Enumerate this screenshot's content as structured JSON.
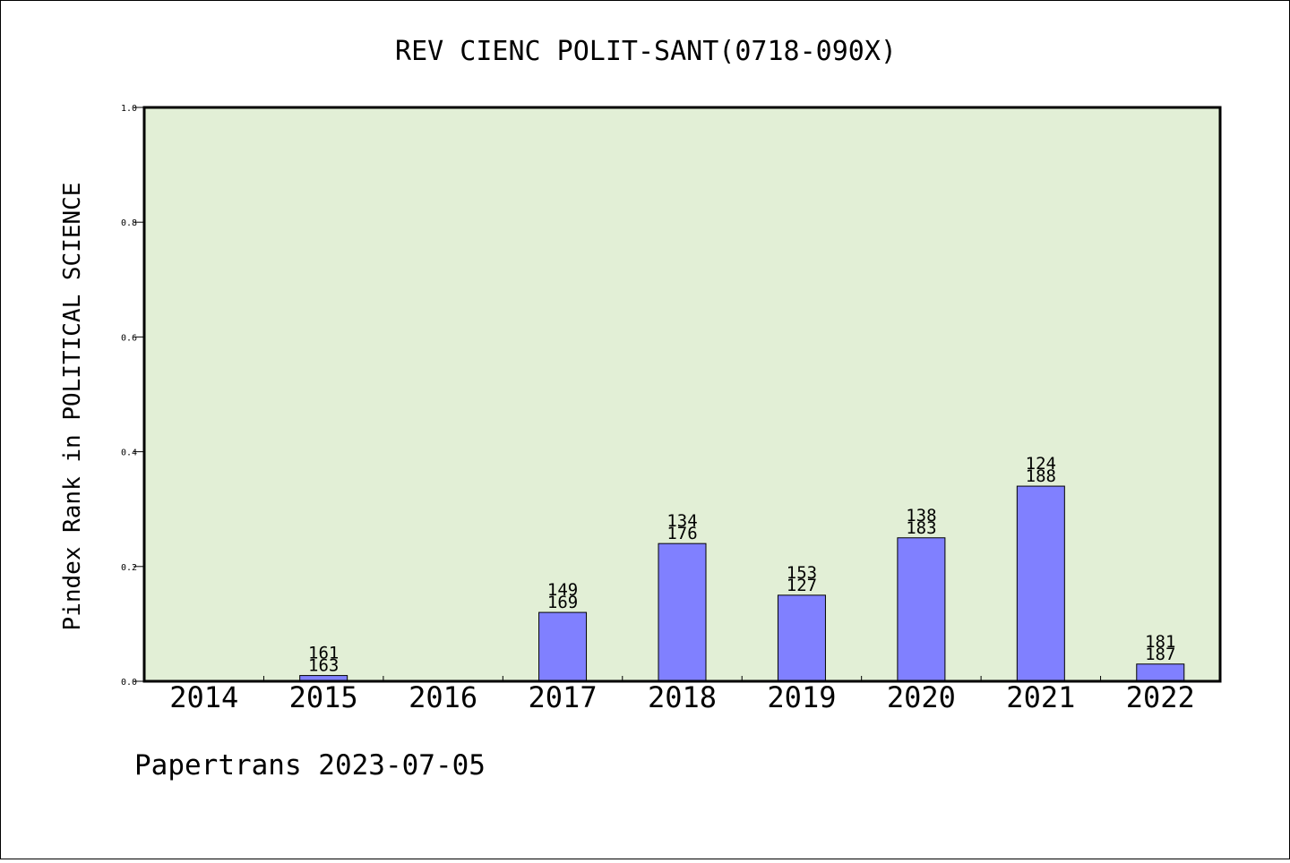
{
  "chart_data": {
    "type": "bar",
    "title": "REV CIENC POLIT-SANT(0718-090X)",
    "xlabel": "",
    "ylabel": "Pindex Rank in POLITICAL SCIENCE",
    "ylim": [
      0,
      1.0
    ],
    "yticks": [
      "0.0",
      "0.2",
      "0.4",
      "0.6",
      "0.8",
      "1.0"
    ],
    "ytick_values": [
      0,
      0.2,
      0.4,
      0.6,
      0.8,
      1.0
    ],
    "categories": [
      "2014",
      "2015",
      "2016",
      "2017",
      "2018",
      "2019",
      "2020",
      "2021",
      "2022"
    ],
    "values": [
      null,
      0.01,
      null,
      0.12,
      0.24,
      0.15,
      0.25,
      0.34,
      0.03
    ],
    "annotations": [
      null,
      [
        "161",
        "163"
      ],
      null,
      [
        "149",
        "169"
      ],
      [
        "134",
        "176"
      ],
      [
        "153",
        "127"
      ],
      [
        "138",
        "183"
      ],
      [
        "124",
        "188"
      ],
      [
        "181",
        "187"
      ]
    ],
    "grid": false,
    "legend": "none"
  },
  "colors": {
    "plot_background": "#e2efd6",
    "bar_fill": "#8080ff",
    "bar_stroke": "#000000",
    "axis": "#000000"
  },
  "footer": "Papertrans 2023-07-05"
}
